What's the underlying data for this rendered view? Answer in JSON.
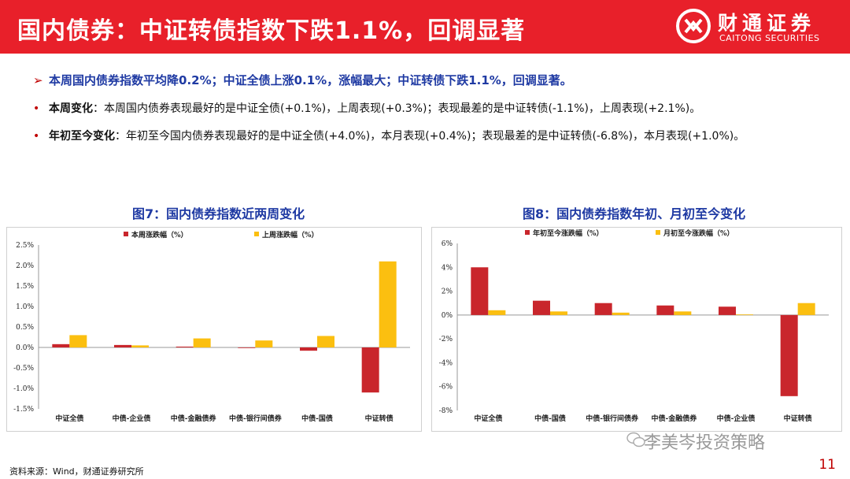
{
  "header": {
    "title": "国内债券：中证转债指数下跌1.1%，回调显著",
    "logo_cn": "财通证券",
    "logo_en": "CAITONG SECURITIES",
    "accent_color": "#e8202a"
  },
  "bullets": {
    "headline_marker": "➢",
    "headline": "本周国内债券指数平均降0.2%；中证全债上涨0.1%，涨幅最大；中证转债下跌1.1%，回调显著。",
    "marker": "•",
    "weekly_lead": "本周变化",
    "weekly_text": "：本周国内债券表现最好的是中证全债(+0.1%)，上周表现(+0.3%)；表现最差的是中证转债(-1.1%)，上周表现(+2.1%)。",
    "ytd_lead": "年初至今变化",
    "ytd_text": "：年初至今国内债券表现最好的是中证全债(+4.0%)，本月表现(+0.4%)；表现最差的是中证转债(-6.8%)，本月表现(+1.0%)。"
  },
  "footer": {
    "source": "资料来源：Wind，财通证券研究所",
    "page_number": "11",
    "watermark": "李美岑投资策略"
  },
  "chart_data": [
    {
      "title": "图7：国内债券指数近两周变化",
      "type": "bar",
      "categories": [
        "中证全债",
        "中债-企业债",
        "中债-金融债券",
        "中债-银行间债券",
        "中债-国债",
        "中证转债"
      ],
      "series": [
        {
          "name": "本周涨跌幅（%）",
          "values": [
            0.08,
            0.06,
            0.02,
            0.0,
            -0.08,
            -1.1
          ],
          "color": "#c9262c"
        },
        {
          "name": "上周涨跌幅（%）",
          "values": [
            0.3,
            0.05,
            0.22,
            0.17,
            0.28,
            2.1
          ],
          "color": "#fbbf10"
        }
      ],
      "yticks": [
        "2.5%",
        "2.0%",
        "1.5%",
        "1.0%",
        "0.5%",
        "0.0%",
        "-0.5%",
        "-1.0%",
        "-1.5%"
      ],
      "ylim": [
        -1.5,
        2.5
      ],
      "legend": "top"
    },
    {
      "title": "图8：国内债券指数年初、月初至今变化",
      "type": "bar",
      "categories": [
        "中证全债",
        "中债-国债",
        "中债-银行间债券",
        "中债-金融债券",
        "中债-企业债",
        "中证转债"
      ],
      "series": [
        {
          "name": "年初至今涨跌幅（%）",
          "values": [
            4.0,
            1.2,
            1.0,
            0.8,
            0.7,
            -6.8
          ],
          "color": "#c9262c"
        },
        {
          "name": "月初至今涨跌幅（%）",
          "values": [
            0.4,
            0.3,
            0.2,
            0.3,
            0.05,
            1.0
          ],
          "color": "#fbbf10"
        }
      ],
      "yticks": [
        "6%",
        "4%",
        "2%",
        "0%",
        "-2%",
        "-4%",
        "-6%",
        "-8%"
      ],
      "ylim": [
        -8,
        6
      ],
      "legend": "top"
    }
  ]
}
